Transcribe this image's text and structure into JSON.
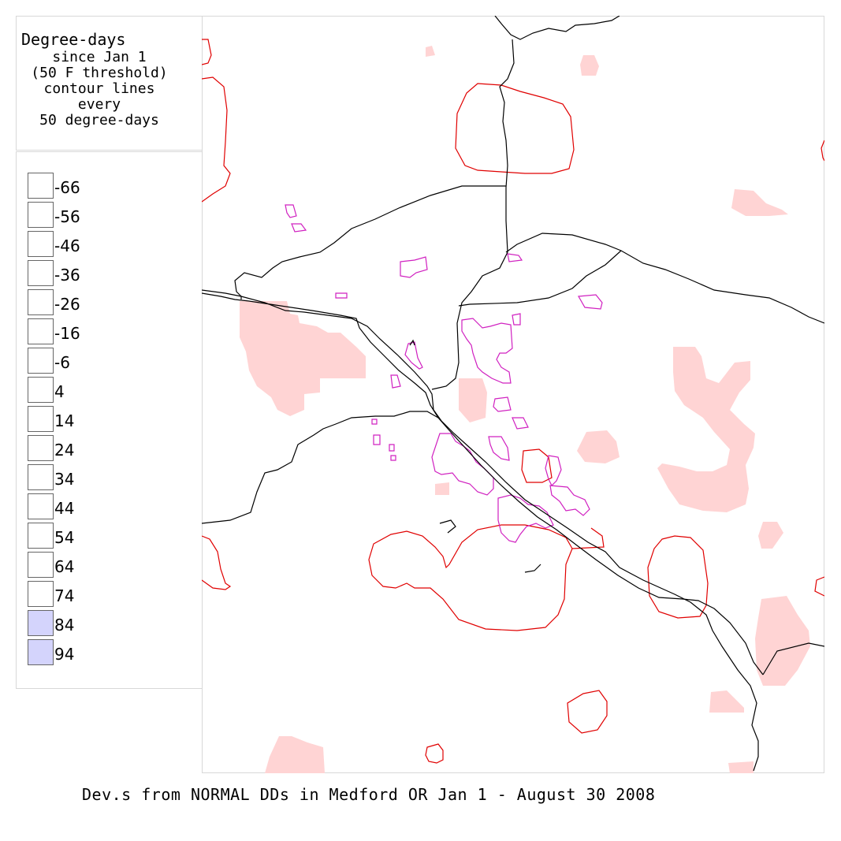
{
  "legend": {
    "title": "Degree-days",
    "lines": [
      "since Jan 1",
      "(50 F threshold)",
      "contour lines",
      "every",
      "50 degree-days"
    ],
    "scale": [
      {
        "label": "-66",
        "color": "#ffffff"
      },
      {
        "label": "-56",
        "color": "#ffffff"
      },
      {
        "label": "-46",
        "color": "#ffffff"
      },
      {
        "label": "-36",
        "color": "#ffffff"
      },
      {
        "label": "-26",
        "color": "#ffffff"
      },
      {
        "label": "-16",
        "color": "#ffffff"
      },
      {
        "label": "-6",
        "color": "#ffffff"
      },
      {
        "label": "4",
        "color": "#ffffff"
      },
      {
        "label": "14",
        "color": "#ffffff"
      },
      {
        "label": "24",
        "color": "#ffffff"
      },
      {
        "label": "34",
        "color": "#ffffff"
      },
      {
        "label": "44",
        "color": "#ffffff"
      },
      {
        "label": "54",
        "color": "#ffffff"
      },
      {
        "label": "64",
        "color": "#ffffff"
      },
      {
        "label": "74",
        "color": "#ffffff"
      },
      {
        "label": "84",
        "color": "#d4d4fc"
      },
      {
        "label": "94",
        "color": "#d4d4fc"
      }
    ]
  },
  "colors": {
    "shade": "#ffd4d4",
    "contour": "#e00000",
    "urban": "#d020c0",
    "roads": "#000000"
  },
  "caption": "Dev.s from NORMAL DDs in Medford OR Jan 1 - August 30 2008"
}
